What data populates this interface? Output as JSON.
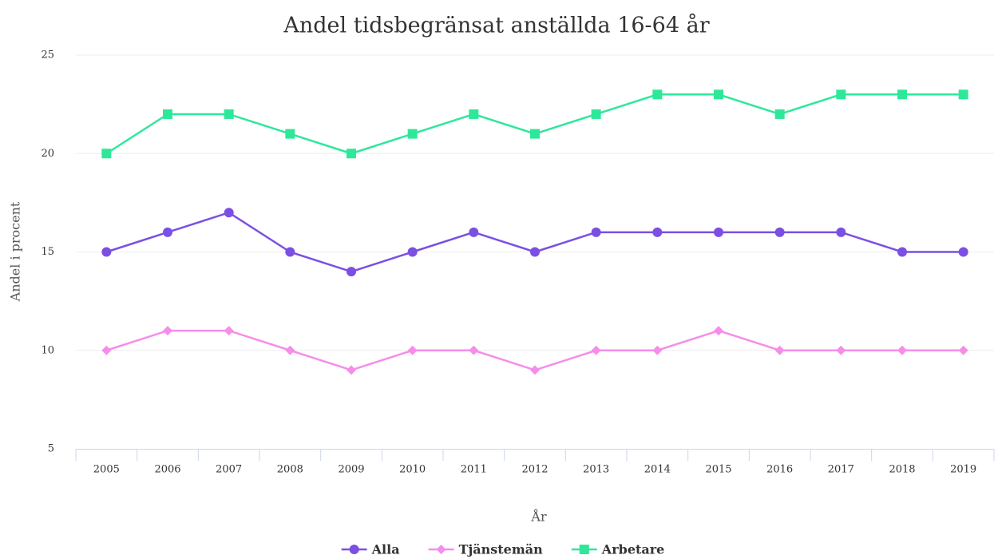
{
  "chart_data": {
    "type": "line",
    "title": "Andel tidsbegränsat anställda 16-64 år",
    "x_label": "År",
    "y_label": "Andel i procent",
    "categories": [
      "2005",
      "2006",
      "2007",
      "2008",
      "2009",
      "2010",
      "2011",
      "2012",
      "2013",
      "2014",
      "2015",
      "2016",
      "2017",
      "2018",
      "2019"
    ],
    "series": [
      {
        "name": "Alla",
        "color": "#7b4fe3",
        "marker": "circle",
        "values": [
          15,
          16,
          17,
          15,
          14,
          15,
          16,
          15,
          16,
          16,
          16,
          16,
          16,
          15,
          15
        ]
      },
      {
        "name": "Tjänstemän",
        "color": "#f58ee9",
        "marker": "diamond",
        "values": [
          10,
          11,
          11,
          10,
          9,
          10,
          10,
          9,
          10,
          10,
          11,
          10,
          10,
          10,
          10
        ]
      },
      {
        "name": "Arbetare",
        "color": "#2ee89a",
        "marker": "square",
        "values": [
          20,
          22,
          22,
          21,
          20,
          21,
          22,
          21,
          22,
          23,
          23,
          22,
          23,
          23,
          23
        ]
      }
    ],
    "ylim": [
      5,
      25
    ],
    "yticks": [
      5,
      10,
      15,
      20,
      25
    ],
    "grid": true,
    "legend": "bottom"
  }
}
